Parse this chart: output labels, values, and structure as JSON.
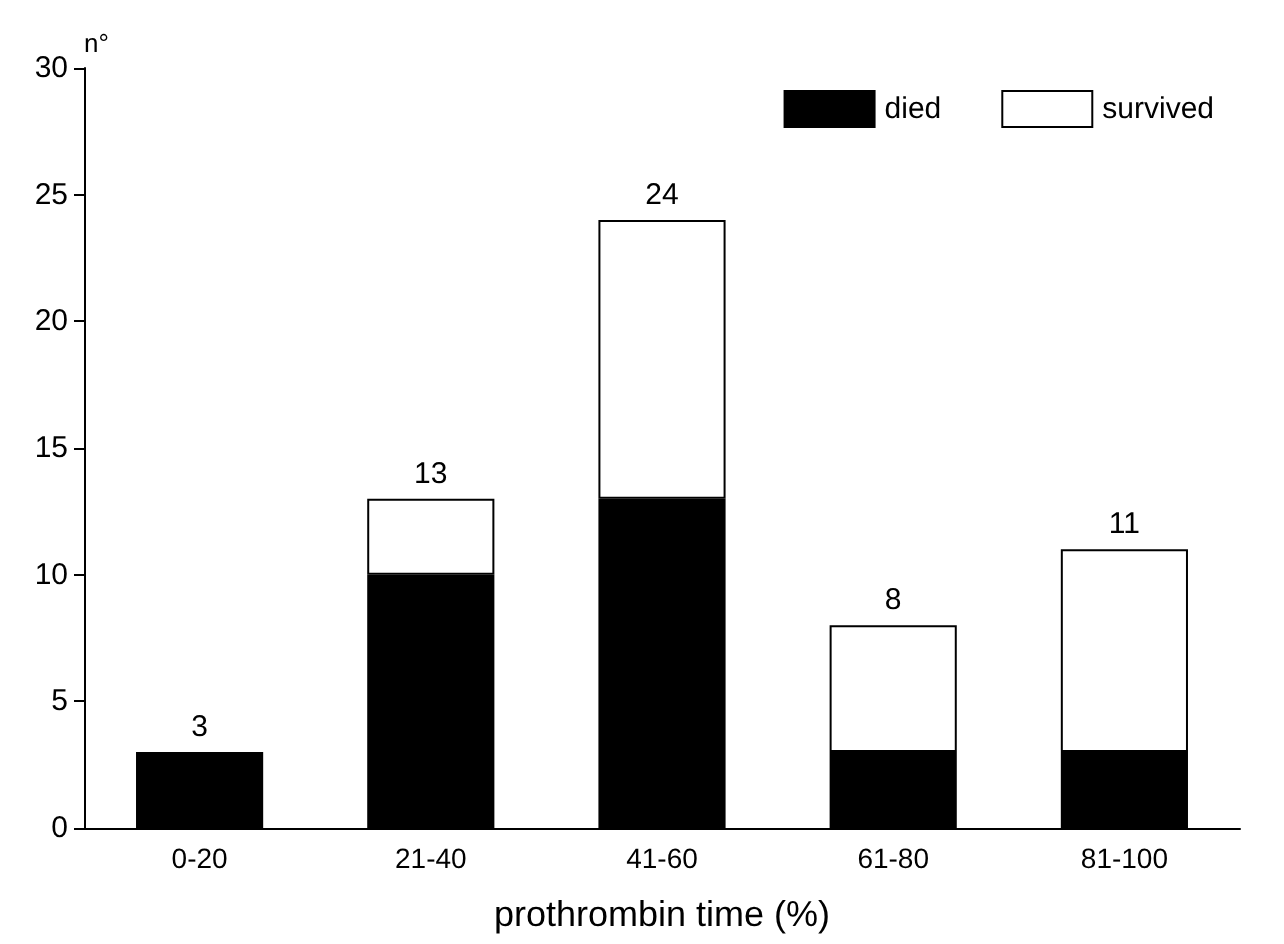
{
  "chart_data": {
    "type": "bar",
    "xlabel": "prothrombin time (%)",
    "ylabel": "n°",
    "categories": [
      "0-20",
      "21-40",
      "41-60",
      "61-80",
      "81-100"
    ],
    "series": [
      {
        "name": "died",
        "color": "#000000",
        "values": [
          3,
          10,
          13,
          3,
          3
        ]
      },
      {
        "name": "survived",
        "color": "#ffffff",
        "values": [
          null,
          3,
          11,
          5,
          8
        ]
      }
    ],
    "stacked": true,
    "totals": [
      "3",
      "13",
      "24",
      "8",
      "11"
    ],
    "ylim": [
      0,
      30
    ],
    "yticks": [
      0,
      5,
      10,
      15,
      20,
      25,
      30
    ],
    "grid": false,
    "legend": "top right"
  }
}
